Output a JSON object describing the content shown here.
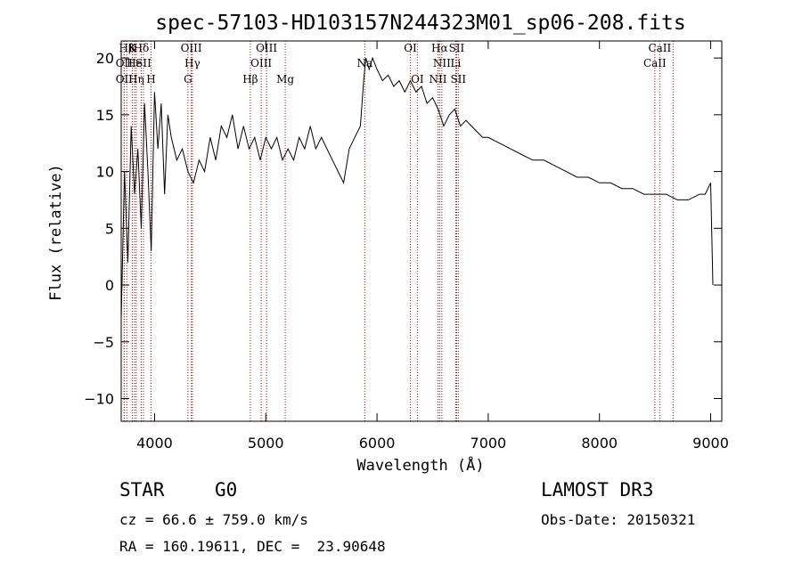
{
  "chart_data": {
    "type": "line",
    "title": "spec-57103-HD103157N244323M01_sp06-208.fits",
    "xlabel": "Wavelength (Å)",
    "ylabel": "Flux (relative)",
    "xlim": [
      3700,
      9100
    ],
    "ylim": [
      -12,
      21.5
    ],
    "xticks": [
      4000,
      5000,
      6000,
      7000,
      8000,
      9000
    ],
    "yticks": [
      -10,
      -5,
      0,
      5,
      10,
      15,
      20
    ],
    "series": [
      {
        "name": "flux",
        "x": [
          3700,
          3730,
          3760,
          3790,
          3820,
          3850,
          3880,
          3910,
          3940,
          3970,
          4000,
          4030,
          4060,
          4090,
          4120,
          4150,
          4200,
          4250,
          4300,
          4350,
          4400,
          4450,
          4500,
          4550,
          4600,
          4650,
          4700,
          4750,
          4800,
          4850,
          4900,
          4950,
          5000,
          5050,
          5100,
          5150,
          5200,
          5250,
          5300,
          5350,
          5400,
          5450,
          5500,
          5550,
          5600,
          5650,
          5700,
          5750,
          5800,
          5850,
          5880,
          5900,
          5930,
          5960,
          6000,
          6050,
          6100,
          6150,
          6200,
          6250,
          6300,
          6350,
          6400,
          6450,
          6500,
          6550,
          6600,
          6650,
          6700,
          6750,
          6800,
          6850,
          6900,
          6950,
          7000,
          7100,
          7200,
          7300,
          7400,
          7500,
          7600,
          7700,
          7800,
          7900,
          8000,
          8100,
          8200,
          8300,
          8400,
          8500,
          8600,
          8700,
          8800,
          8900,
          8950,
          9000,
          9020
        ],
        "y": [
          -3,
          10,
          2,
          14,
          8,
          12,
          5,
          16,
          10,
          3,
          17,
          12,
          16,
          8,
          15,
          13,
          11,
          12,
          10,
          9,
          11,
          10,
          13,
          11,
          14,
          13,
          15,
          12,
          14,
          12,
          13,
          11,
          13,
          12,
          13,
          11,
          12,
          11,
          13,
          12,
          14,
          12,
          13,
          12,
          11,
          10,
          9,
          12,
          13,
          14,
          18,
          20,
          19,
          20,
          19,
          18,
          18.5,
          17.5,
          18,
          17,
          18,
          17,
          17.5,
          16,
          16.5,
          15.5,
          14,
          15,
          15.5,
          14,
          14.5,
          14,
          13.5,
          13,
          13,
          12.5,
          12,
          11.5,
          11,
          11,
          10.5,
          10,
          9.5,
          9.5,
          9,
          9,
          8.5,
          8.5,
          8,
          8,
          8,
          7.5,
          7.5,
          8,
          8,
          9,
          0
        ]
      }
    ],
    "spectral_lines": [
      {
        "label": "Hβ",
        "wavelength": 3750
      },
      {
        "label": "K",
        "wavelength": 3800
      },
      {
        "label": "Hδ",
        "wavelength": 3880
      },
      {
        "label": "OIII",
        "wavelength": 4330
      },
      {
        "label": "OIII",
        "wavelength": 5007
      },
      {
        "label": "OI",
        "wavelength": 6300
      },
      {
        "label": "Hα",
        "wavelength": 6563
      },
      {
        "label": "SII",
        "wavelength": 6716
      },
      {
        "label": "CaII",
        "wavelength": 8542
      },
      {
        "label": "OII",
        "wavelength": 3727
      },
      {
        "label": "He",
        "wavelength": 3820
      },
      {
        "label": "SII",
        "wavelength": 3900
      },
      {
        "label": "Hγ",
        "wavelength": 4340
      },
      {
        "label": "OIII",
        "wavelength": 4959
      },
      {
        "label": "Na",
        "wavelength": 5890
      },
      {
        "label": "NII",
        "wavelength": 6583
      },
      {
        "label": "Li",
        "wavelength": 6708
      },
      {
        "label": "CaII",
        "wavelength": 8498
      },
      {
        "label": "OII",
        "wavelength": 3727
      },
      {
        "label": "Hη",
        "wavelength": 3835
      },
      {
        "label": "H",
        "wavelength": 3968
      },
      {
        "label": "G",
        "wavelength": 4300
      },
      {
        "label": "Hβ",
        "wavelength": 4861
      },
      {
        "label": "Mg",
        "wavelength": 5175
      },
      {
        "label": "OI",
        "wavelength": 6363
      },
      {
        "label": "NII",
        "wavelength": 6548
      },
      {
        "label": "SII",
        "wavelength": 6731
      },
      {
        "label": "CaII",
        "wavelength": 8662
      }
    ]
  },
  "info": {
    "object_type": "STAR",
    "subclass": "G0",
    "survey": "LAMOST DR3",
    "redshift": "cz = 66.6 ± 759.0 km/s",
    "obs_date": "Obs-Date: 20150321",
    "coords": "RA = 160.19611, DEC =  23.90648"
  }
}
